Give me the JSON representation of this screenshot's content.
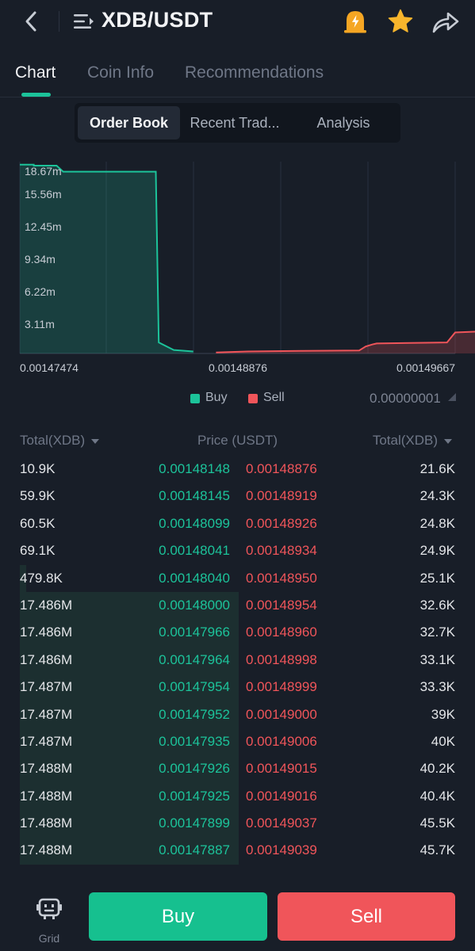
{
  "header": {
    "title": "XDB/USDT",
    "icons": [
      "back-arrow-icon",
      "menu-icon",
      "price-alert-icon",
      "favorite-star-icon",
      "share-icon"
    ],
    "alert_color": "#f5a623",
    "star_color": "#f7b52c"
  },
  "tabs": [
    {
      "label": "Chart",
      "active": true
    },
    {
      "label": "Coin Info",
      "active": false
    },
    {
      "label": "Recommendations",
      "active": false
    }
  ],
  "segments": [
    {
      "label": "Order Book",
      "active": true
    },
    {
      "label": "Recent Trad...",
      "active": false
    },
    {
      "label": "Analysis",
      "active": false
    }
  ],
  "chart_data": {
    "type": "area",
    "title": "",
    "y_tick_labels": [
      "18.67m",
      "15.56m",
      "12.45m",
      "9.34m",
      "6.22m",
      "3.11m"
    ],
    "x_tick_labels": [
      "0.00147474",
      "0.00148876",
      "0.00149667"
    ],
    "series": [
      {
        "name": "Buy",
        "color": "#1cc39a",
        "x": [
          0.00147474,
          0.0014756,
          0.0014756,
          0.001477,
          0.0014774,
          0.0014831,
          0.00148328,
          0.0014842,
          0.0014854
        ],
        "y": [
          18.9,
          18.9,
          18.8,
          18.8,
          18.2,
          18.2,
          1.1,
          0.35,
          0.2
        ]
      },
      {
        "name": "Sell",
        "color": "#f0555a",
        "x": [
          0.0014868,
          0.00148876,
          0.001492,
          0.0014956,
          0.0014958,
          0.001496,
          0.0014964,
          0.00149667,
          0.001501,
          0.0015015,
          0.001503
        ],
        "y": [
          0.1,
          0.2,
          0.25,
          0.3,
          0.5,
          0.7,
          0.9,
          1.0,
          1.1,
          2.1,
          2.2
        ]
      }
    ],
    "legend": {
      "buy": "Buy",
      "sell": "Sell",
      "position": "bottom-center"
    },
    "grid": true
  },
  "precision": "0.00000001",
  "orderbook": {
    "headers": {
      "bid_total": "Total(XDB)",
      "price": "Price (USDT)",
      "ask_total": "Total(XDB)"
    },
    "rows": [
      {
        "bid_total": "10.9K",
        "bid_price": "0.00148148",
        "ask_price": "0.00148876",
        "ask_total": "21.6K",
        "bid_depth": 0.0,
        "ask_depth": 0.0
      },
      {
        "bid_total": "59.9K",
        "bid_price": "0.00148145",
        "ask_price": "0.00148919",
        "ask_total": "24.3K",
        "bid_depth": 0.0,
        "ask_depth": 0.0
      },
      {
        "bid_total": "60.5K",
        "bid_price": "0.00148099",
        "ask_price": "0.00148926",
        "ask_total": "24.8K",
        "bid_depth": 0.0,
        "ask_depth": 0.0
      },
      {
        "bid_total": "69.1K",
        "bid_price": "0.00148041",
        "ask_price": "0.00148934",
        "ask_total": "24.9K",
        "bid_depth": 0.0,
        "ask_depth": 0.0
      },
      {
        "bid_total": "479.8K",
        "bid_price": "0.00148040",
        "ask_price": "0.00148950",
        "ask_total": "25.1K",
        "bid_depth": 0.03,
        "ask_depth": 0.0
      },
      {
        "bid_total": "17.486M",
        "bid_price": "0.00148000",
        "ask_price": "0.00148954",
        "ask_total": "32.6K",
        "bid_depth": 1.0,
        "ask_depth": 0.0
      },
      {
        "bid_total": "17.486M",
        "bid_price": "0.00147966",
        "ask_price": "0.00148960",
        "ask_total": "32.7K",
        "bid_depth": 1.0,
        "ask_depth": 0.0
      },
      {
        "bid_total": "17.486M",
        "bid_price": "0.00147964",
        "ask_price": "0.00148998",
        "ask_total": "33.1K",
        "bid_depth": 1.0,
        "ask_depth": 0.0
      },
      {
        "bid_total": "17.487M",
        "bid_price": "0.00147954",
        "ask_price": "0.00148999",
        "ask_total": "33.3K",
        "bid_depth": 1.0,
        "ask_depth": 0.0
      },
      {
        "bid_total": "17.487M",
        "bid_price": "0.00147952",
        "ask_price": "0.00149000",
        "ask_total": "39K",
        "bid_depth": 1.0,
        "ask_depth": 0.0
      },
      {
        "bid_total": "17.487M",
        "bid_price": "0.00147935",
        "ask_price": "0.00149006",
        "ask_total": "40K",
        "bid_depth": 1.0,
        "ask_depth": 0.0
      },
      {
        "bid_total": "17.488M",
        "bid_price": "0.00147926",
        "ask_price": "0.00149015",
        "ask_total": "40.2K",
        "bid_depth": 1.0,
        "ask_depth": 0.0
      },
      {
        "bid_total": "17.488M",
        "bid_price": "0.00147925",
        "ask_price": "0.00149016",
        "ask_total": "40.4K",
        "bid_depth": 1.0,
        "ask_depth": 0.0
      },
      {
        "bid_total": "17.488M",
        "bid_price": "0.00147899",
        "ask_price": "0.00149037",
        "ask_total": "45.5K",
        "bid_depth": 1.0,
        "ask_depth": 0.0
      },
      {
        "bid_total": "17.488M",
        "bid_price": "0.00147887",
        "ask_price": "0.00149039",
        "ask_total": "45.7K",
        "bid_depth": 1.0,
        "ask_depth": 0.0
      }
    ]
  },
  "bottom": {
    "grid_label": "Grid",
    "buy_label": "Buy",
    "sell_label": "Sell",
    "buy_color": "#16c08f",
    "sell_color": "#f0555a"
  }
}
